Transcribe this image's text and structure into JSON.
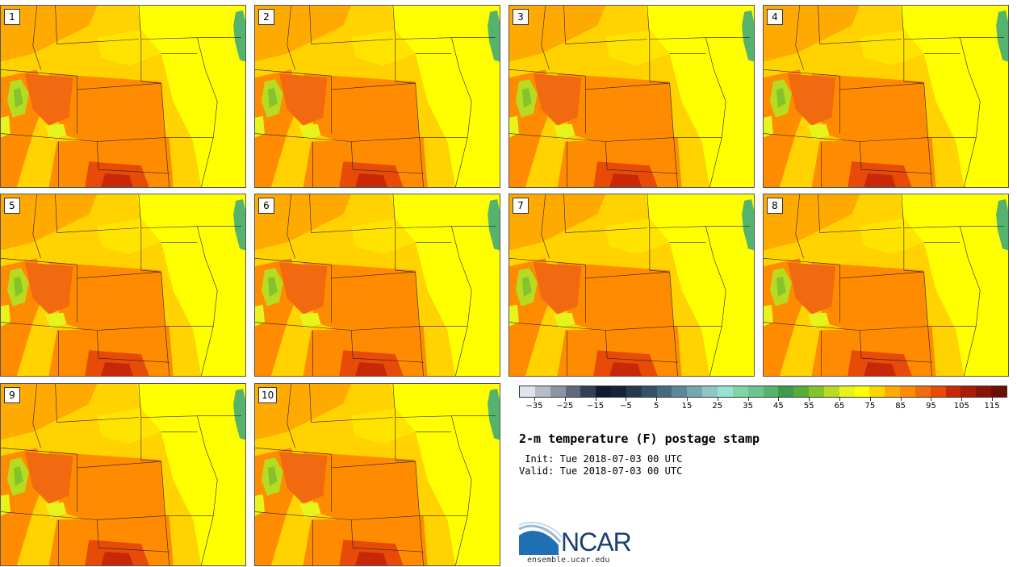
{
  "panels": [
    "1",
    "2",
    "3",
    "4",
    "5",
    "6",
    "7",
    "8",
    "9",
    "10"
  ],
  "colorbar": {
    "colors": [
      "#dfe3ea",
      "#b7bdc8",
      "#8c93a4",
      "#5f6a80",
      "#33405a",
      "#101a30",
      "#172338",
      "#243a52",
      "#33526a",
      "#466b80",
      "#5d8799",
      "#76a6b0",
      "#8ec6c4",
      "#97e2d2",
      "#7fd5a5",
      "#6bc58c",
      "#55b36d",
      "#3f9a4a",
      "#56ad3a",
      "#83c42c",
      "#b7db20",
      "#e7f31a",
      "#ffff00",
      "#ffd500",
      "#ffaa00",
      "#ff8c00",
      "#f26a10",
      "#e84a08",
      "#c82808",
      "#a81c08",
      "#8a1406",
      "#6a1004"
    ],
    "tick_labels": [
      "−35",
      "−25",
      "−15",
      "−5",
      "5",
      "15",
      "25",
      "35",
      "45",
      "55",
      "65",
      "75",
      "85",
      "95",
      "105",
      "115"
    ],
    "tick_values": [
      -35,
      -25,
      -15,
      -5,
      5,
      15,
      25,
      35,
      45,
      55,
      65,
      75,
      85,
      95,
      105,
      115
    ],
    "range": [
      -40,
      120
    ]
  },
  "title": "2-m temperature (F) postage stamp",
  "init_line": " Init: Tue 2018-07-03 00 UTC",
  "valid_line": "Valid: Tue 2018-07-03 00 UTC",
  "logo": {
    "text": "NCAR",
    "url": "ensemble.ucar.edu",
    "color": "#1a3f72",
    "accent": "#1f6fb5"
  }
}
